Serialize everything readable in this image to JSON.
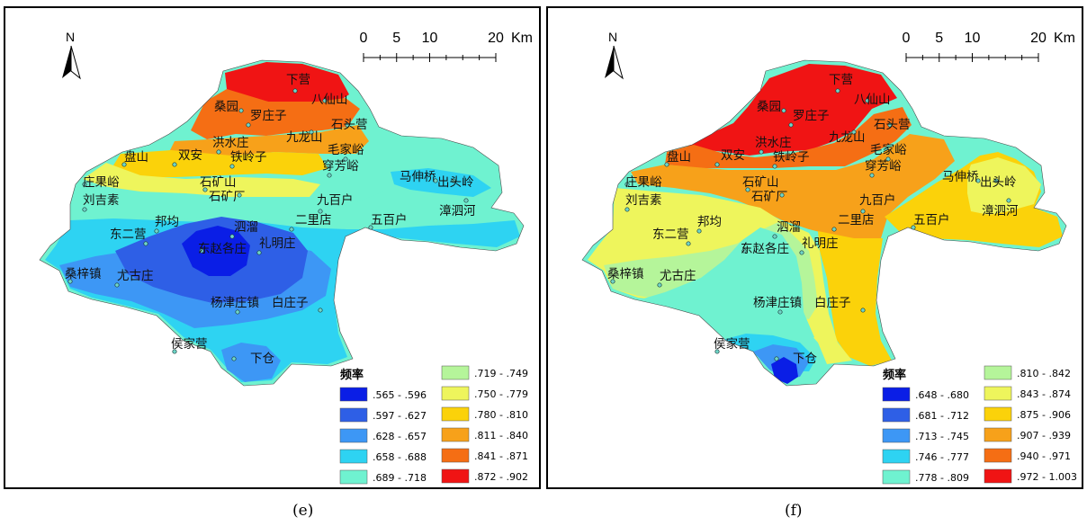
{
  "panels": [
    {
      "id": "e",
      "caption": "(e)",
      "north_label": "N",
      "scale": {
        "ticks": [
          "0",
          "5",
          "10",
          "20"
        ],
        "unit": "Km"
      },
      "legend_title": "频率",
      "legend": [
        {
          "range": ".565 - .596",
          "color": "#0a1ee6"
        },
        {
          "range": ".597 - .627",
          "color": "#2e5fe6"
        },
        {
          "range": ".628 - .657",
          "color": "#3d97f5"
        },
        {
          "range": ".658 - .688",
          "color": "#2ed3f2"
        },
        {
          "range": ".689 - .718",
          "color": "#6ff2d0"
        },
        {
          "range": ".719 - .749",
          "color": "#b5f59a"
        },
        {
          "range": ".750 - .779",
          "color": "#eef55c"
        },
        {
          "range": ".780 - .810",
          "color": "#fbd20a"
        },
        {
          "range": ".811 - .840",
          "color": "#f7a11a"
        },
        {
          "range": ".841 - .871",
          "color": "#f56e14"
        },
        {
          "range": ".872 - .902",
          "color": "#f01414"
        }
      ],
      "places": [
        "下营",
        "八仙山",
        "桑园",
        "罗庄子",
        "九龙山",
        "石头营",
        "洪水庄",
        "盘山",
        "双安",
        "铁岭子",
        "毛家峪",
        "穿芳峪",
        "马伸桥",
        "出头岭",
        "庄果峪",
        "石矿山",
        "石矿厂",
        "刘吉素",
        "九百户",
        "二里店",
        "五百户",
        "漳泗河",
        "东二营",
        "邦均",
        "泗溜",
        "东赵各庄",
        "礼明庄",
        "桑梓镇",
        "尤古庄",
        "杨津庄镇",
        "白庄子",
        "侯家营",
        "下仓"
      ]
    },
    {
      "id": "f",
      "caption": "(f)",
      "north_label": "N",
      "scale": {
        "ticks": [
          "0",
          "5",
          "10",
          "20"
        ],
        "unit": "Km"
      },
      "legend_title": "频率",
      "legend": [
        {
          "range": ".648 - .680",
          "color": "#0a1ee6"
        },
        {
          "range": ".681 - .712",
          "color": "#2e5fe6"
        },
        {
          "range": ".713 - .745",
          "color": "#3d97f5"
        },
        {
          "range": ".746 - .777",
          "color": "#2ed3f2"
        },
        {
          "range": ".778 - .809",
          "color": "#6ff2d0"
        },
        {
          "range": ".810 - .842",
          "color": "#b5f59a"
        },
        {
          "range": ".843 - .874",
          "color": "#eef55c"
        },
        {
          "range": ".875 - .906",
          "color": "#fbd20a"
        },
        {
          "range": ".907 - .939",
          "color": "#f7a11a"
        },
        {
          "range": ".940 - .971",
          "color": "#f56e14"
        },
        {
          "range": ".972 - 1.003",
          "color": "#f01414"
        }
      ],
      "places": [
        "下营",
        "八仙山",
        "桑园",
        "罗庄子",
        "九龙山",
        "石头营",
        "洪水庄",
        "盘山",
        "双安",
        "铁岭子",
        "毛家峪",
        "穿芳峪",
        "马伸桥",
        "出头岭",
        "庄果峪",
        "石矿山",
        "石矿厂",
        "刘吉素",
        "九百户",
        "二里店",
        "五百户",
        "漳泗河",
        "东二营",
        "邦均",
        "泗溜",
        "东赵各庄",
        "礼明庄",
        "桑梓镇",
        "尤古庄",
        "杨津庄镇",
        "白庄子",
        "侯家营",
        "下仓"
      ]
    }
  ]
}
